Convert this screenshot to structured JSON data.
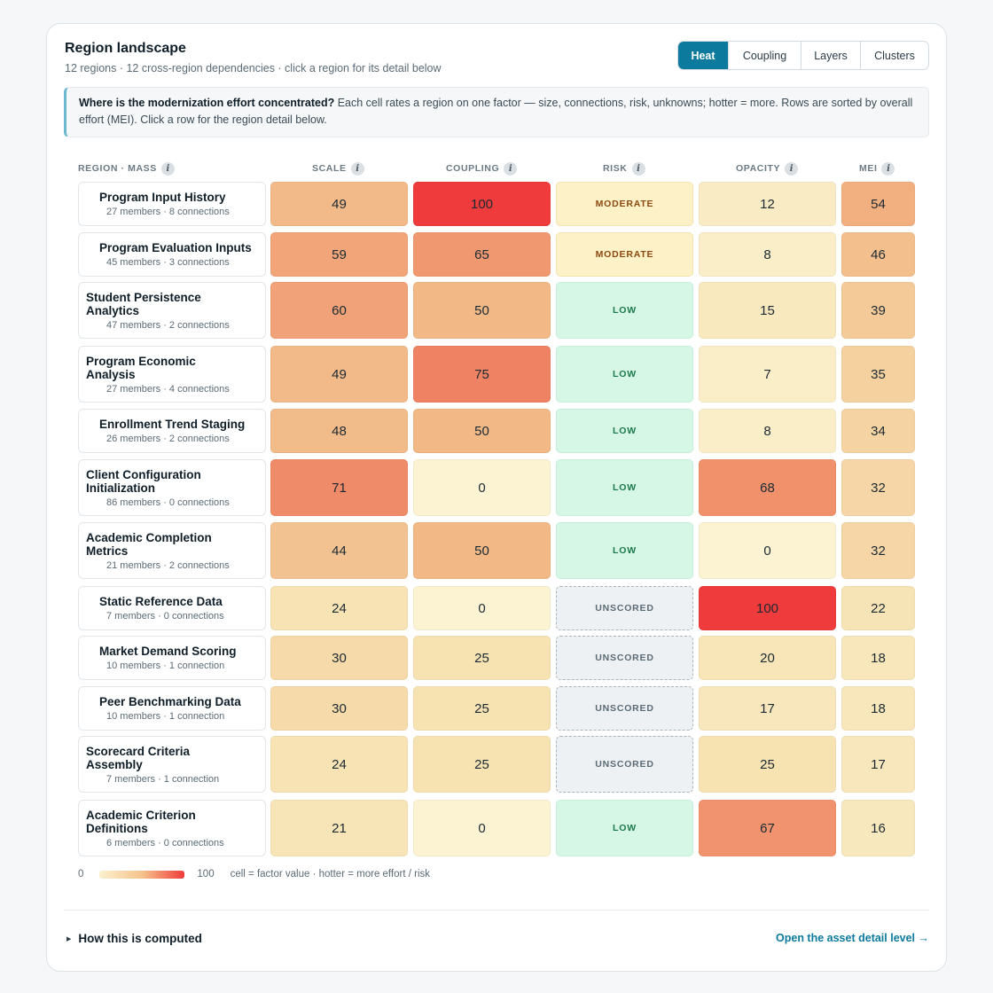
{
  "header": {
    "title": "Region landscape",
    "subtitle": "12 regions · 12 cross-region dependencies · click a region for its detail below"
  },
  "tabs": [
    {
      "label": "Heat",
      "active": true
    },
    {
      "label": "Coupling",
      "active": false
    },
    {
      "label": "Layers",
      "active": false
    },
    {
      "label": "Clusters",
      "active": false
    }
  ],
  "callout": {
    "question": "Where is the modernization effort concentrated?",
    "text": " Each cell rates a region on one factor — size, connections, risk, unknowns; hotter = more. Rows are sorted by overall effort (MEI). Click a row for the region detail below."
  },
  "columns": {
    "region": "REGION · MASS",
    "scale": "SCALE",
    "coupling": "COUPLING",
    "risk": "RISK",
    "opacity": "OPACITY",
    "mei": "MEI",
    "info_icon": "i"
  },
  "rows": [
    {
      "name": "Program Input History",
      "meta": "27 members · 8 connections",
      "scale": "49",
      "coupling": "100",
      "risk": "MODERATE",
      "opacity": "12",
      "mei": "54"
    },
    {
      "name": "Program Evaluation Inputs",
      "meta": "45 members · 3 connections",
      "scale": "59",
      "coupling": "65",
      "risk": "MODERATE",
      "opacity": "8",
      "mei": "46"
    },
    {
      "name": "Student Persistence Analytics",
      "meta": "47 members · 2 connections",
      "scale": "60",
      "coupling": "50",
      "risk": "LOW",
      "opacity": "15",
      "mei": "39"
    },
    {
      "name": "Program Economic Analysis",
      "meta": "27 members · 4 connections",
      "scale": "49",
      "coupling": "75",
      "risk": "LOW",
      "opacity": "7",
      "mei": "35"
    },
    {
      "name": "Enrollment Trend Staging",
      "meta": "26 members · 2 connections",
      "scale": "48",
      "coupling": "50",
      "risk": "LOW",
      "opacity": "8",
      "mei": "34"
    },
    {
      "name": "Client Configuration Initialization",
      "meta": "86 members · 0 connections",
      "scale": "71",
      "coupling": "0",
      "risk": "LOW",
      "opacity": "68",
      "mei": "32"
    },
    {
      "name": "Academic Completion Metrics",
      "meta": "21 members · 2 connections",
      "scale": "44",
      "coupling": "50",
      "risk": "LOW",
      "opacity": "0",
      "mei": "32"
    },
    {
      "name": "Static Reference Data",
      "meta": "7 members · 0 connections",
      "scale": "24",
      "coupling": "0",
      "risk": "UNSCORED",
      "opacity": "100",
      "mei": "22"
    },
    {
      "name": "Market Demand Scoring",
      "meta": "10 members · 1 connection",
      "scale": "30",
      "coupling": "25",
      "risk": "UNSCORED",
      "opacity": "20",
      "mei": "18"
    },
    {
      "name": "Peer Benchmarking Data",
      "meta": "10 members · 1 connection",
      "scale": "30",
      "coupling": "25",
      "risk": "UNSCORED",
      "opacity": "17",
      "mei": "18"
    },
    {
      "name": "Scorecard Criteria Assembly",
      "meta": "7 members · 1 connection",
      "scale": "24",
      "coupling": "25",
      "risk": "UNSCORED",
      "opacity": "25",
      "mei": "17"
    },
    {
      "name": "Academic Criterion Definitions",
      "meta": "6 members · 0 connections",
      "scale": "21",
      "coupling": "0",
      "risk": "LOW",
      "opacity": "67",
      "mei": "16"
    }
  ],
  "legend": {
    "min": "0",
    "max": "100",
    "caption": "cell = factor value · hotter = more effort / risk"
  },
  "footer": {
    "how_label": "How this is computed",
    "open_link": "Open the asset detail level →"
  },
  "colors": {
    "accent": "#0b7a9c",
    "heat_low": "#fbf3d2",
    "heat_high": "#ef3b3b",
    "risk_low_bg": "#d6f7e6",
    "risk_moderate_bg": "#fdf1c7",
    "risk_unscored_bg": "#eef1f4"
  }
}
